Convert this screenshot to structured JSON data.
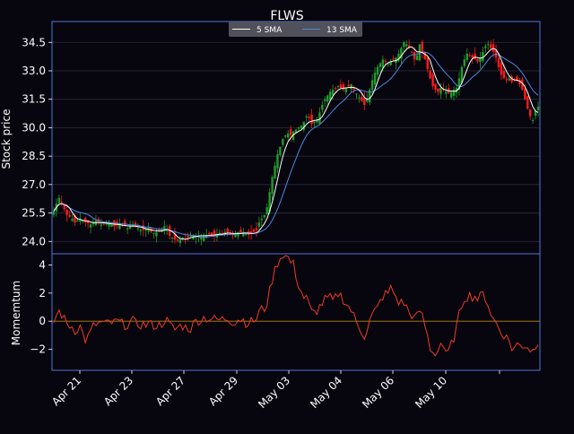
{
  "chart_data": {
    "type": "candlestick",
    "title": "FLWS",
    "colors": {
      "background": "#07050e",
      "frame": "#4f79d9",
      "grid": "#2e2e3c",
      "text": "#ffffff",
      "up": "#1f9d2a",
      "down": "#ff1a1a",
      "sma5": "#ffffff",
      "sma13": "#4f88e0",
      "momentum": "#f03a28",
      "zero_line": "#b8860b",
      "legend_bg": "#5a5a64"
    },
    "x_tick_labels": [
      "Apr 21",
      "Apr 23",
      "Apr 27",
      "Apr 29",
      "May 03",
      "May 04",
      "May 06",
      "May 10",
      ""
    ],
    "price_panel": {
      "ylabel": "Stock price",
      "yticks": [
        24.0,
        25.5,
        27.0,
        28.5,
        30.0,
        31.5,
        33.0,
        34.5
      ],
      "ylim": [
        23.35,
        35.6
      ],
      "legend": [
        "5 SMA",
        "13 SMA"
      ],
      "legend_position": "top-center",
      "close_prices": [
        25.6,
        26.0,
        26.3,
        26.1,
        25.7,
        25.4,
        25.3,
        25.2,
        25.0,
        25.1,
        25.2,
        25.1,
        25.0,
        24.95,
        24.9,
        25.0,
        25.1,
        25.0,
        24.9,
        24.9,
        24.95,
        25.0,
        24.9,
        24.8,
        24.85,
        24.9,
        24.85,
        24.8,
        24.7,
        24.8,
        24.9,
        24.8,
        24.7,
        24.6,
        24.6,
        24.65,
        24.7,
        24.5,
        24.45,
        24.5,
        24.6,
        24.65,
        24.8,
        24.6,
        24.3,
        24.2,
        24.1,
        24.05,
        24.1,
        24.2,
        24.15,
        24.2,
        24.3,
        24.35,
        24.3,
        24.3,
        24.25,
        24.3,
        24.35,
        24.4,
        24.35,
        24.3,
        24.4,
        24.45,
        24.4,
        24.5,
        24.45,
        24.4,
        24.35,
        24.4,
        24.5,
        24.45,
        24.5,
        24.4,
        24.35,
        24.4,
        24.5,
        24.6,
        25.0,
        25.2,
        25.4,
        25.8,
        26.6,
        27.4,
        28.0,
        28.6,
        29.0,
        29.4,
        29.6,
        29.7,
        29.6,
        29.8,
        29.9,
        30.0,
        30.1,
        30.3,
        30.6,
        30.5,
        30.2,
        30.3,
        30.4,
        30.8,
        31.2,
        31.5,
        31.7,
        31.9,
        32.0,
        32.1,
        32.2,
        32.1,
        32.0,
        32.1,
        32.2,
        32.3,
        32.0,
        31.8,
        31.6,
        31.4,
        31.2,
        31.5,
        32.0,
        32.5,
        32.9,
        33.2,
        33.4,
        33.6,
        33.5,
        33.4,
        33.5,
        33.6,
        33.7,
        33.9,
        34.2,
        34.5,
        34.4,
        34.2,
        34.0,
        33.6,
        33.8,
        34.4,
        34.0,
        33.6,
        33.1,
        32.6,
        32.2,
        32.0,
        31.9,
        32.1,
        32.0,
        31.9,
        31.8,
        31.9,
        32.0,
        32.1,
        32.6,
        33.2,
        33.6,
        33.9,
        33.8,
        33.7,
        33.6,
        33.5,
        33.7,
        34.0,
        34.3,
        34.4,
        34.2,
        34.0,
        33.7,
        33.2,
        32.8,
        32.6,
        32.5,
        32.6,
        32.4,
        32.5,
        32.5,
        32.3,
        32.0,
        31.5,
        31.0,
        30.6,
        30.4,
        30.9,
        31.1
      ]
    },
    "momentum_panel": {
      "ylabel": "Momemtum",
      "yticks": [
        -2,
        0,
        2,
        4
      ],
      "ylim": [
        -3.5,
        4.8
      ]
    }
  }
}
